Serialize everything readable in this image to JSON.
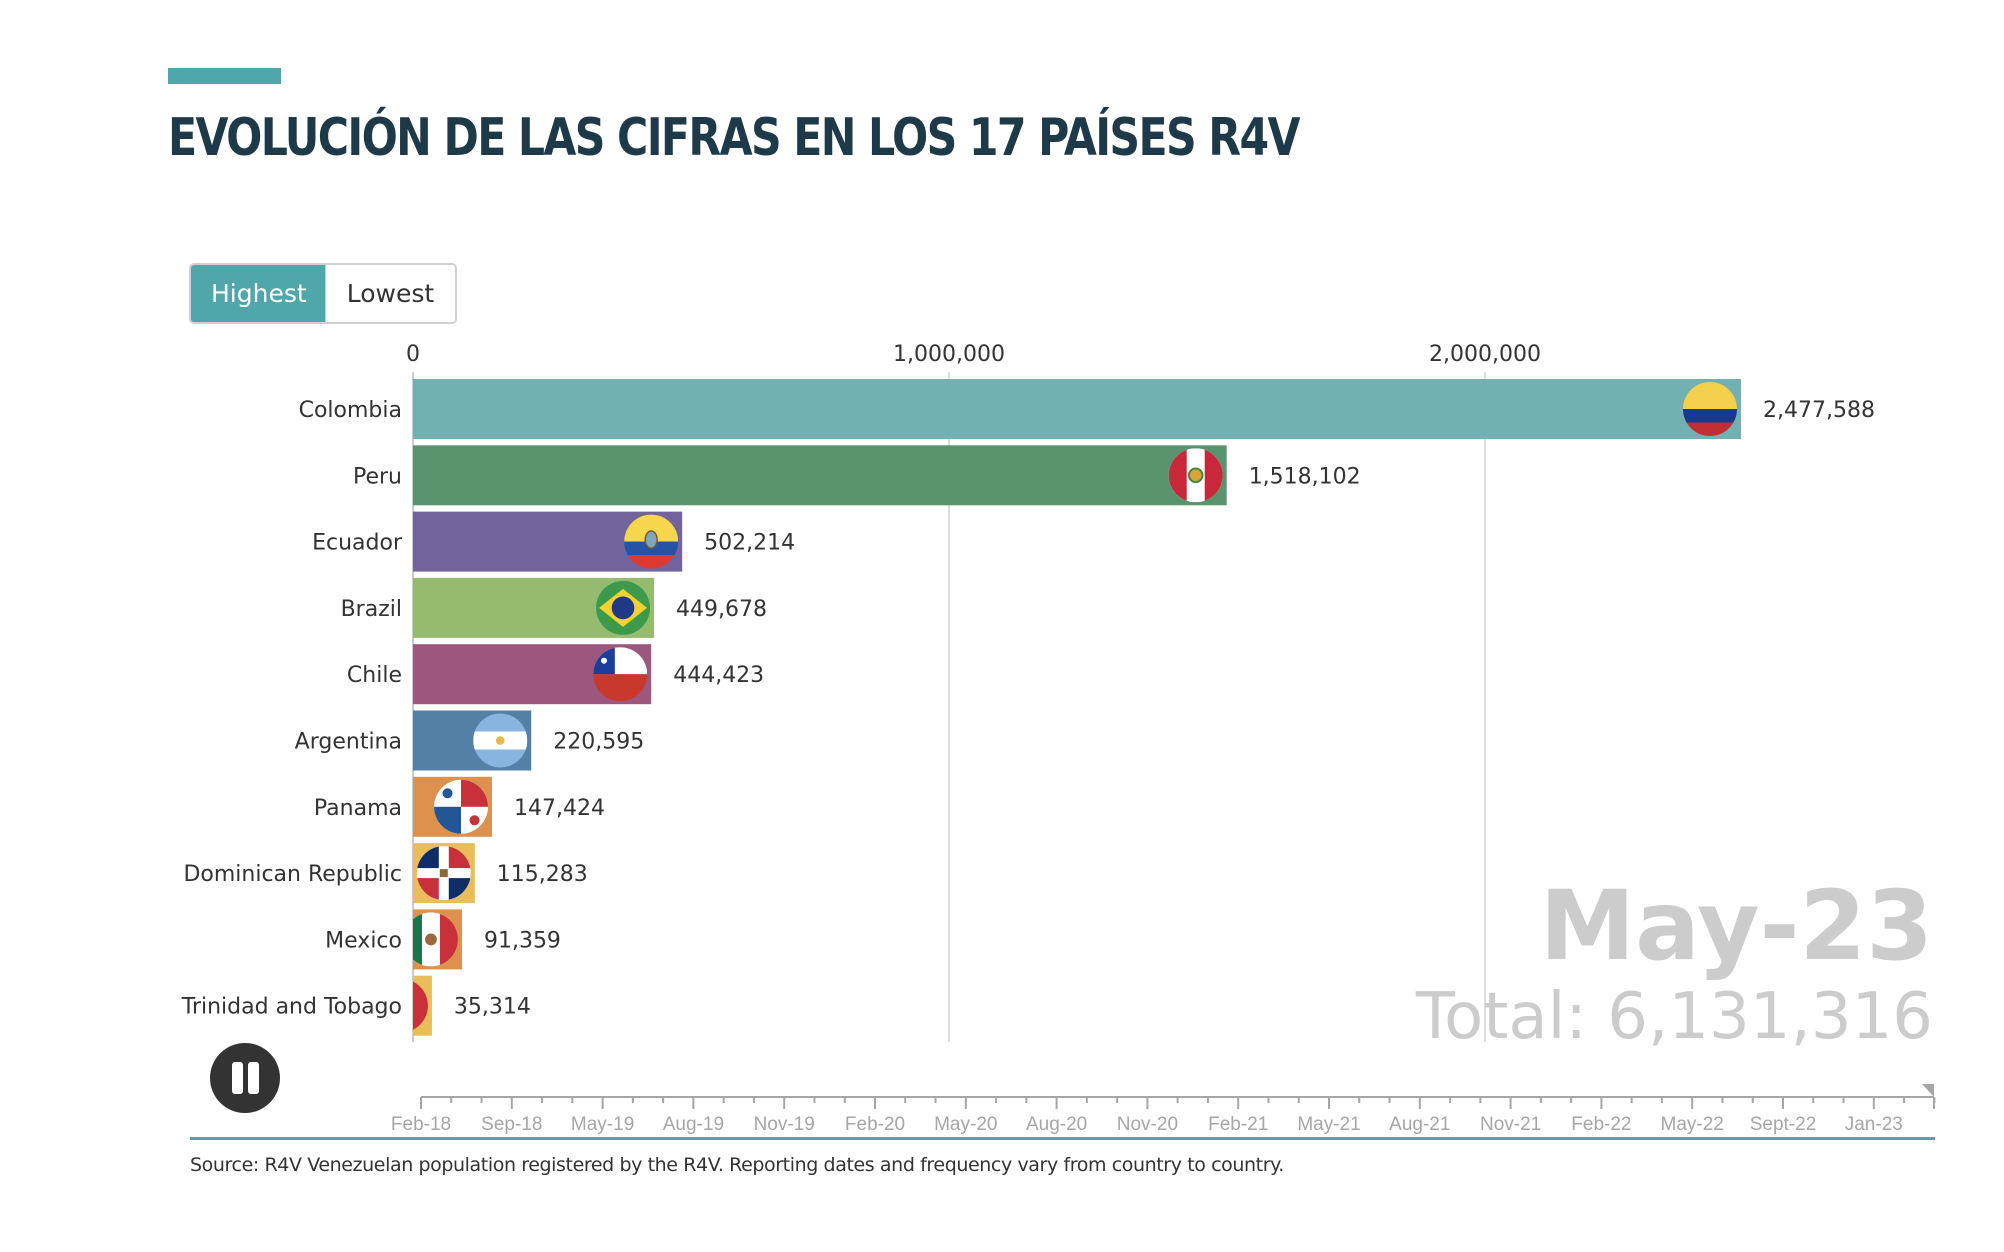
{
  "header": {
    "title": "EVOLUCIÓN DE LAS CIFRAS EN LOS 17 PAÍSES R4V"
  },
  "toggle": {
    "highest_label": "Highest",
    "lowest_label": "Lowest",
    "selected": "Highest"
  },
  "colors": {
    "accent": "#4fa7ac",
    "title": "#1e3a48"
  },
  "chart_data": {
    "type": "bar",
    "orientation": "horizontal",
    "title": "EVOLUCIÓN DE LAS CIFRAS EN LOS 17 PAÍSES R4V",
    "xlabel": "",
    "ylabel": "",
    "xlim": [
      0,
      2800000
    ],
    "grid": true,
    "x_ticks": [
      {
        "value": 0,
        "label": "0"
      },
      {
        "value": 1000000,
        "label": "1,000,000"
      },
      {
        "value": 2000000,
        "label": "2,000,000"
      }
    ],
    "categories": [
      "Colombia",
      "Peru",
      "Ecuador",
      "Brazil",
      "Chile",
      "Argentina",
      "Panama",
      "Dominican Republic",
      "Mexico",
      "Trinidad and Tobago"
    ],
    "values": [
      2477588,
      1518102,
      502214,
      449678,
      444423,
      220595,
      147424,
      115283,
      91359,
      35314
    ],
    "value_labels": [
      "2,477,588",
      "1,518,102",
      "502,214",
      "449,678",
      "444,423",
      "220,595",
      "147,424",
      "115,283",
      "91,359",
      "35,314"
    ],
    "bar_colors": [
      "#72b0b1",
      "#5a946e",
      "#72639c",
      "#94bb6f",
      "#9b577d",
      "#5580a6",
      "#dd914c",
      "#e8bd5a",
      "#dd914c",
      "#e8bd5a"
    ],
    "flags": [
      "colombia-flag",
      "peru-flag",
      "ecuador-flag",
      "brazil-flag",
      "chile-flag",
      "argentina-flag",
      "panama-flag",
      "dominican-republic-flag",
      "mexico-flag",
      "trinidad-and-tobago-flag"
    ],
    "current_date": "May-23",
    "total_label": "Total: 6,131,316",
    "total": 6131316
  },
  "timeline": {
    "labels": [
      "Feb-18",
      "Sep-18",
      "May-19",
      "Aug-19",
      "Nov-19",
      "Feb-20",
      "May-20",
      "Aug-20",
      "Nov-20",
      "Feb-21",
      "May-21",
      "Aug-21",
      "Nov-21",
      "Feb-22",
      "May-22",
      "Sept-22",
      "Jan-23"
    ],
    "position_fraction": 1.0,
    "playing": true,
    "pause_label": "Pause"
  },
  "footer": {
    "source": "Source: R4V Venezuelan population registered by the R4V. Reporting dates and frequency vary from country to country."
  }
}
